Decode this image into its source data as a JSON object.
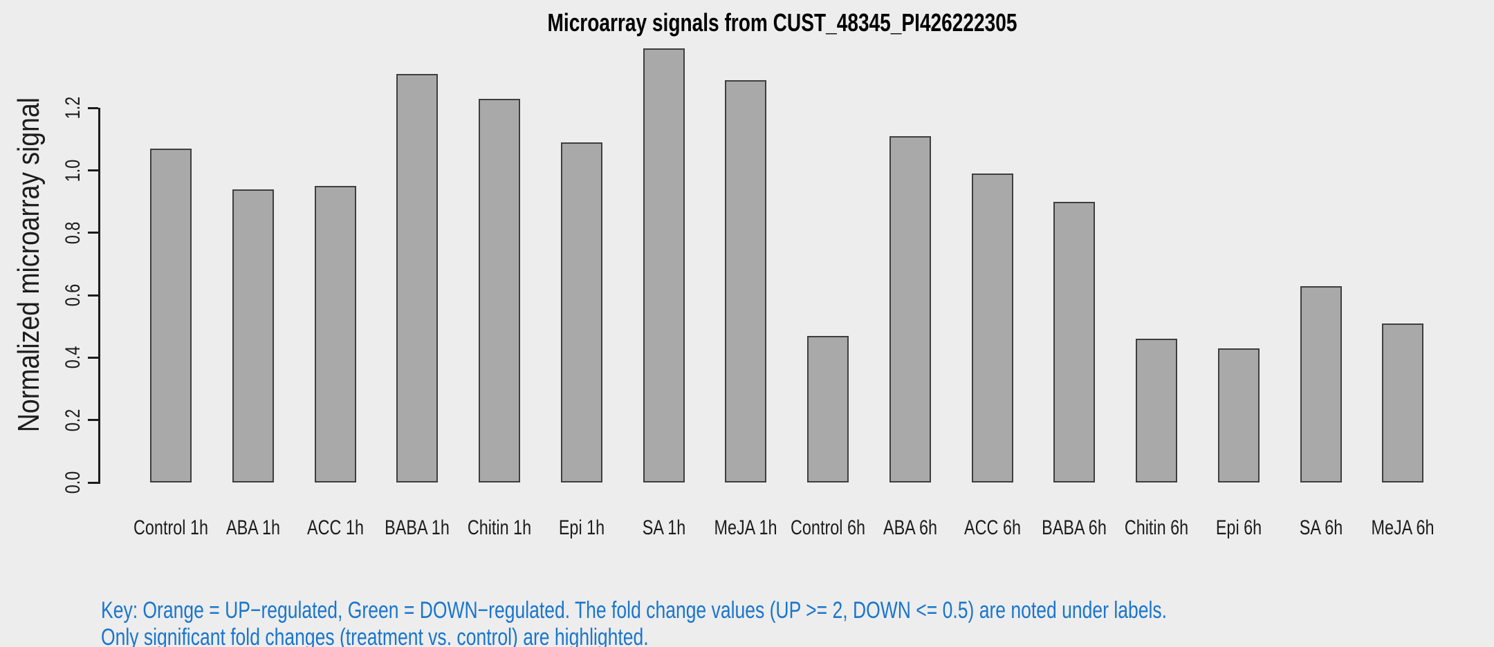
{
  "chart_data": {
    "type": "bar",
    "title": "Microarray signals from CUST_48345_PI426222305",
    "xlabel": "",
    "ylabel": "Normalized microarray signal",
    "categories": [
      "Control 1h",
      "ABA 1h",
      "ACC 1h",
      "BABA 1h",
      "Chitin 1h",
      "Epi 1h",
      "SA 1h",
      "MeJA 1h",
      "Control 6h",
      "ABA 6h",
      "ACC 6h",
      "BABA 6h",
      "Chitin 6h",
      "Epi 6h",
      "SA 6h",
      "MeJA 6h"
    ],
    "values": [
      1.07,
      0.94,
      0.95,
      1.31,
      1.23,
      1.09,
      1.39,
      1.29,
      0.47,
      1.11,
      0.99,
      0.9,
      0.46,
      0.43,
      0.63,
      0.51
    ],
    "ytick_labels": [
      "0.0",
      "0.2",
      "0.4",
      "0.6",
      "0.8",
      "1.0",
      "1.2"
    ],
    "ytick_values": [
      0.0,
      0.2,
      0.4,
      0.6,
      0.8,
      1.0,
      1.2
    ],
    "ylim": [
      0,
      1.45
    ],
    "grid": false,
    "legend_position": "none",
    "bar_fill_color": "#a9a9a9",
    "bar_border_color": "#3e3e3e",
    "axis_color": "#1c1c1c",
    "background_color": "#ededed"
  },
  "footnote": {
    "line1": "Key: Orange = UP−regulated, Green = DOWN−regulated. The fold change values (UP >= 2, DOWN <= 0.5) are noted under labels.",
    "line2": "Only significant fold changes (treatment vs. control) are highlighted.",
    "color": "#1975cc"
  }
}
